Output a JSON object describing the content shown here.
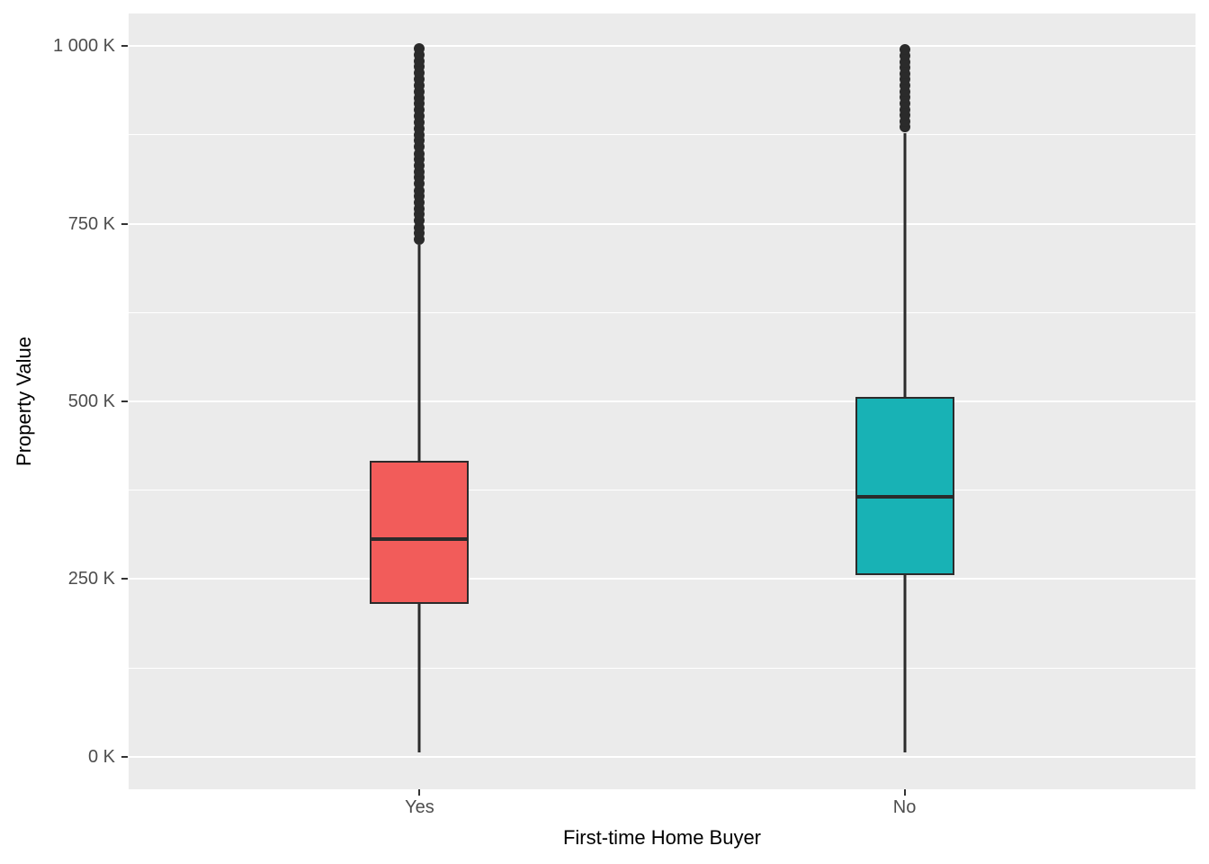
{
  "chart_data": {
    "type": "boxplot",
    "title": "",
    "xlabel": "First-time Home Buyer",
    "ylabel": "Property Value",
    "value_unit": "K (thousands)",
    "categories": [
      "Yes",
      "No"
    ],
    "x_tick_labels": [
      "Yes",
      "No"
    ],
    "y_tick_labels": [
      "0 K",
      "250 K",
      "500 K",
      "750 K",
      "1 000 K"
    ],
    "y_tick_values_k": [
      0,
      250,
      500,
      750,
      1000
    ],
    "y_minor_gridlines_k": [
      125,
      375,
      625,
      875
    ],
    "ylim_k": [
      -46,
      1046
    ],
    "legend_position": "none",
    "grid": "white major/minor horizontal gridlines on grey panel",
    "series": [
      {
        "category": "Yes",
        "fill_color": "#F25C5A",
        "whisker_min_k": 6,
        "q1_k": 215,
        "median_k": 306,
        "q3_k": 417,
        "whisker_max_k": 720,
        "outliers_k": [
          728,
          737,
          745,
          754,
          763,
          771,
          780,
          789,
          797,
          806,
          815,
          823,
          832,
          841,
          849,
          858,
          867,
          875,
          884,
          893,
          901,
          910,
          919,
          927,
          936,
          945,
          953,
          962,
          971,
          979,
          988,
          996
        ]
      },
      {
        "category": "No",
        "fill_color": "#18B2B5",
        "whisker_min_k": 6,
        "q1_k": 256,
        "median_k": 366,
        "q3_k": 506,
        "whisker_max_k": 878,
        "outliers_k": [
          886,
          894,
          903,
          911,
          919,
          928,
          936,
          945,
          953,
          961,
          970,
          978,
          987,
          995
        ]
      }
    ],
    "colors": {
      "figure_background": "#FFFFFF",
      "panel_background": "#EBEBEB",
      "gridline": "#FFFFFF",
      "box_outline": "#2B2B2B",
      "tick_mark": "#333333",
      "tick_label": "#4D4D4D",
      "axis_title": "#000000"
    }
  }
}
